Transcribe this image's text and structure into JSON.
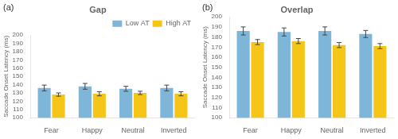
{
  "chart_data": [
    {
      "type": "bar",
      "title": "Gap",
      "annotation": "(a)",
      "categories": [
        "Fear",
        "Happy",
        "Neutral",
        "Inverted"
      ],
      "series": [
        {
          "name": "Low AT",
          "color": "#7EB6D9",
          "values": [
            136,
            138,
            135,
            136
          ],
          "errors": [
            3.5,
            3.5,
            3.0,
            3.5
          ]
        },
        {
          "name": "High AT",
          "color": "#F5C518",
          "values": [
            128,
            129,
            130,
            129
          ],
          "errors": [
            2.0,
            2.5,
            2.0,
            2.5
          ]
        }
      ],
      "ylabel": "Saccade Onset Latency (ms)",
      "ylim": [
        100,
        200
      ],
      "yticks": [
        100,
        110,
        120,
        130,
        140,
        150,
        160,
        170,
        180,
        190,
        200
      ],
      "grid": false,
      "legend": "upper right"
    },
    {
      "type": "bar",
      "title": "Overlap",
      "annotation": "(b)",
      "categories": [
        "Fear",
        "Happy",
        "Neutral",
        "Inverted"
      ],
      "series": [
        {
          "name": "Low AT",
          "color": "#7EB6D9",
          "values": [
            186,
            185,
            186,
            183
          ],
          "errors": [
            4.0,
            4.0,
            4.0,
            3.5
          ]
        },
        {
          "name": "High AT",
          "color": "#F5C518",
          "values": [
            175,
            176,
            172,
            171
          ],
          "errors": [
            2.5,
            2.5,
            2.5,
            2.5
          ]
        }
      ],
      "ylabel": "Saccade Onset Latency (ms)",
      "ylim": [
        100,
        200
      ],
      "yticks": [
        100,
        110,
        120,
        130,
        140,
        150,
        160,
        170,
        180,
        190,
        200
      ],
      "grid": false,
      "legend": false
    }
  ]
}
